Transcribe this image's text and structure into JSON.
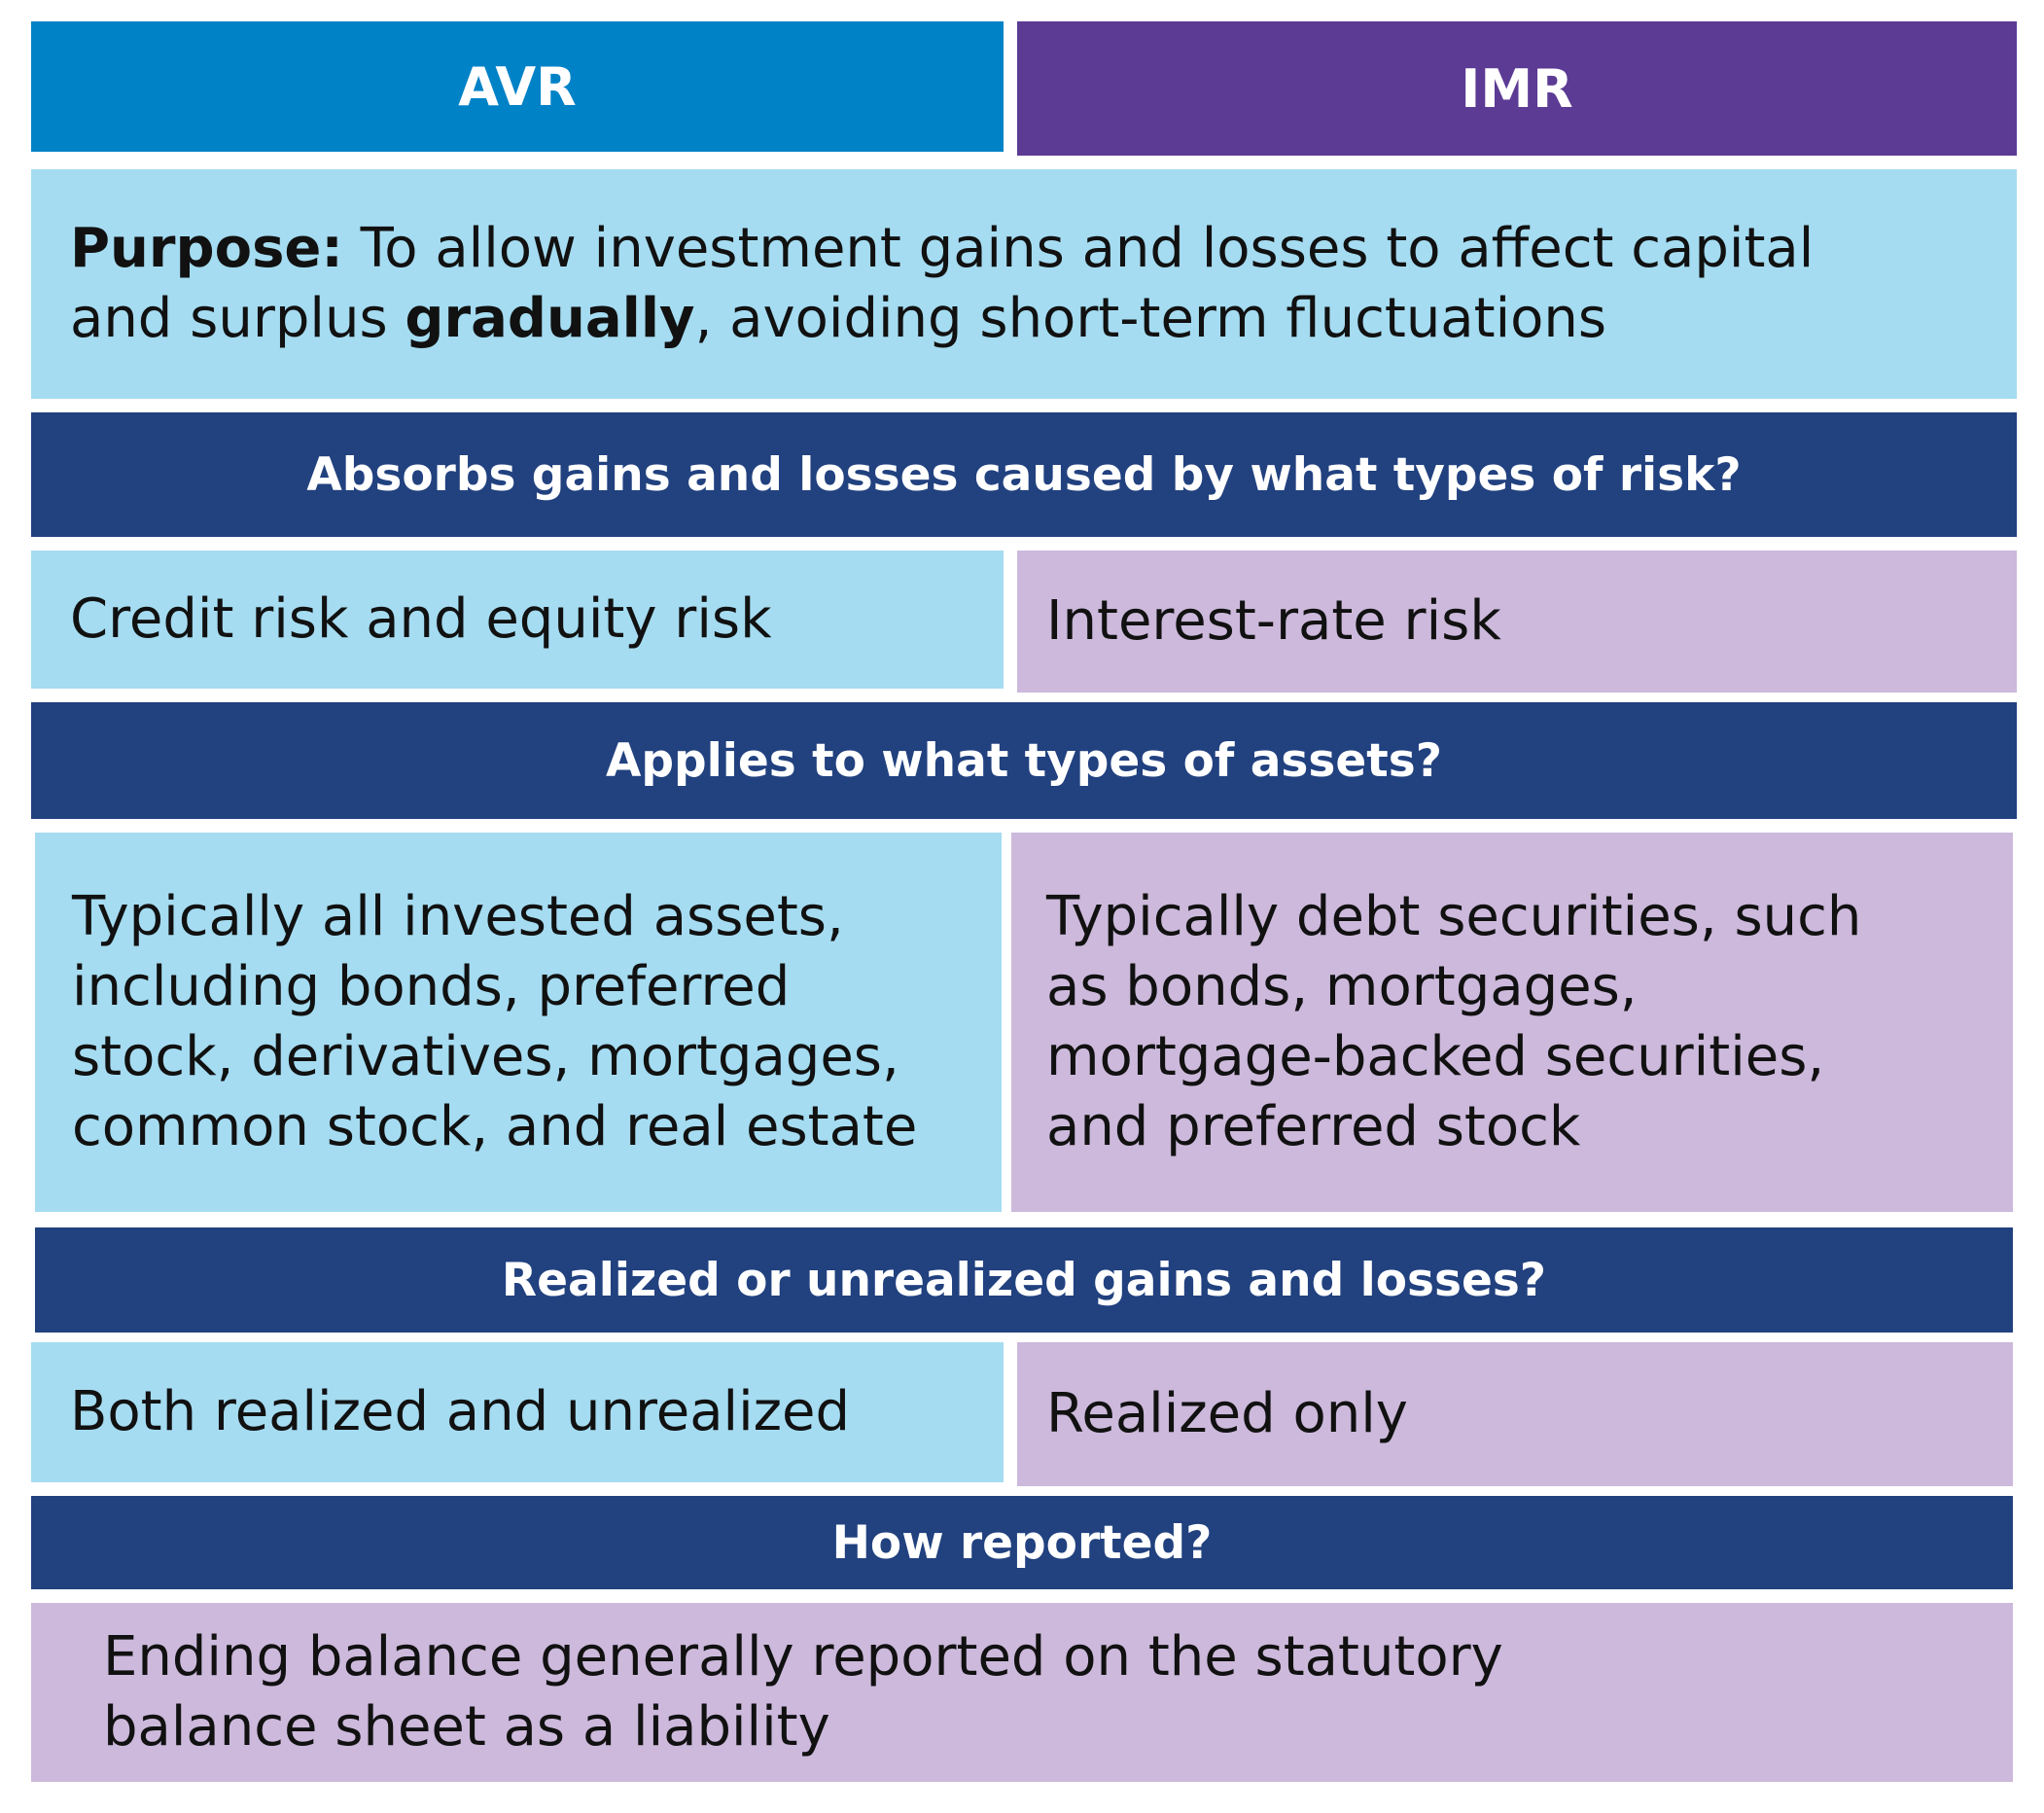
{
  "headers": {
    "avr": "AVR",
    "imr": "IMR"
  },
  "purpose": {
    "label": "Purpose:",
    "text_part1": " To allow investment gains and losses to affect capital and surplus ",
    "bold_word": "gradually",
    "text_part2": ", avoiding short-term fluctuations"
  },
  "sections": {
    "risk": {
      "question": "Absorbs gains and losses caused by what types of risk?",
      "avr": "Credit risk and equity risk",
      "imr": "Interest-rate risk"
    },
    "assets": {
      "question": "Applies to what types of assets?",
      "avr": "Typically all invested assets, including bonds, preferred stock, derivatives, mortgages, common stock, and real estate",
      "imr": "Typically debt securities, such as bonds, mortgages, mortgage-backed securities, and preferred stock"
    },
    "gains": {
      "question": "Realized or unrealized gains and losses?",
      "avr": "Both realized and unrealized",
      "imr": "Realized only"
    },
    "reported": {
      "question": "How reported?",
      "answer": "Ending balance generally reported on the statutory balance sheet as a liability"
    }
  },
  "colors": {
    "avr_header": "#0082c7",
    "imr_header": "#5c3b94",
    "question_band": "#21417f",
    "avr_cell": "#a5dcf1",
    "imr_cell": "#ccb9db"
  }
}
